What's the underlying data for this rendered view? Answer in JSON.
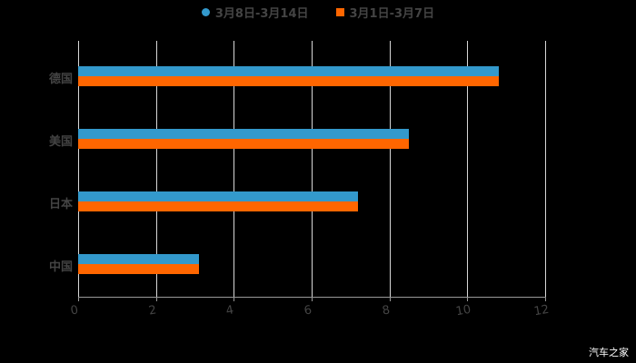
{
  "chart_data": {
    "type": "bar",
    "orientation": "horizontal",
    "title": "",
    "categories": [
      "德国",
      "美国",
      "日本",
      "中国"
    ],
    "series": [
      {
        "name": "3月8日-3月14日",
        "color": "#3399cc",
        "values": [
          10.8,
          8.5,
          7.2,
          3.1
        ]
      },
      {
        "name": "3月1日-3月7日",
        "color": "#ff6600",
        "values": [
          10.8,
          8.5,
          7.2,
          3.1
        ]
      }
    ],
    "xlabel": "",
    "ylabel": "",
    "xlim": [
      0,
      12
    ],
    "xticks": [
      "0",
      "2",
      "4",
      "6",
      "8",
      "10",
      "12"
    ],
    "grid": true,
    "legend_position": "top"
  },
  "legend": [
    {
      "label": "3月8日-3月14日",
      "color": "#3399cc"
    },
    {
      "label": "3月1日-3月7日",
      "color": "#ff6600"
    }
  ],
  "watermark": "汽车之家"
}
